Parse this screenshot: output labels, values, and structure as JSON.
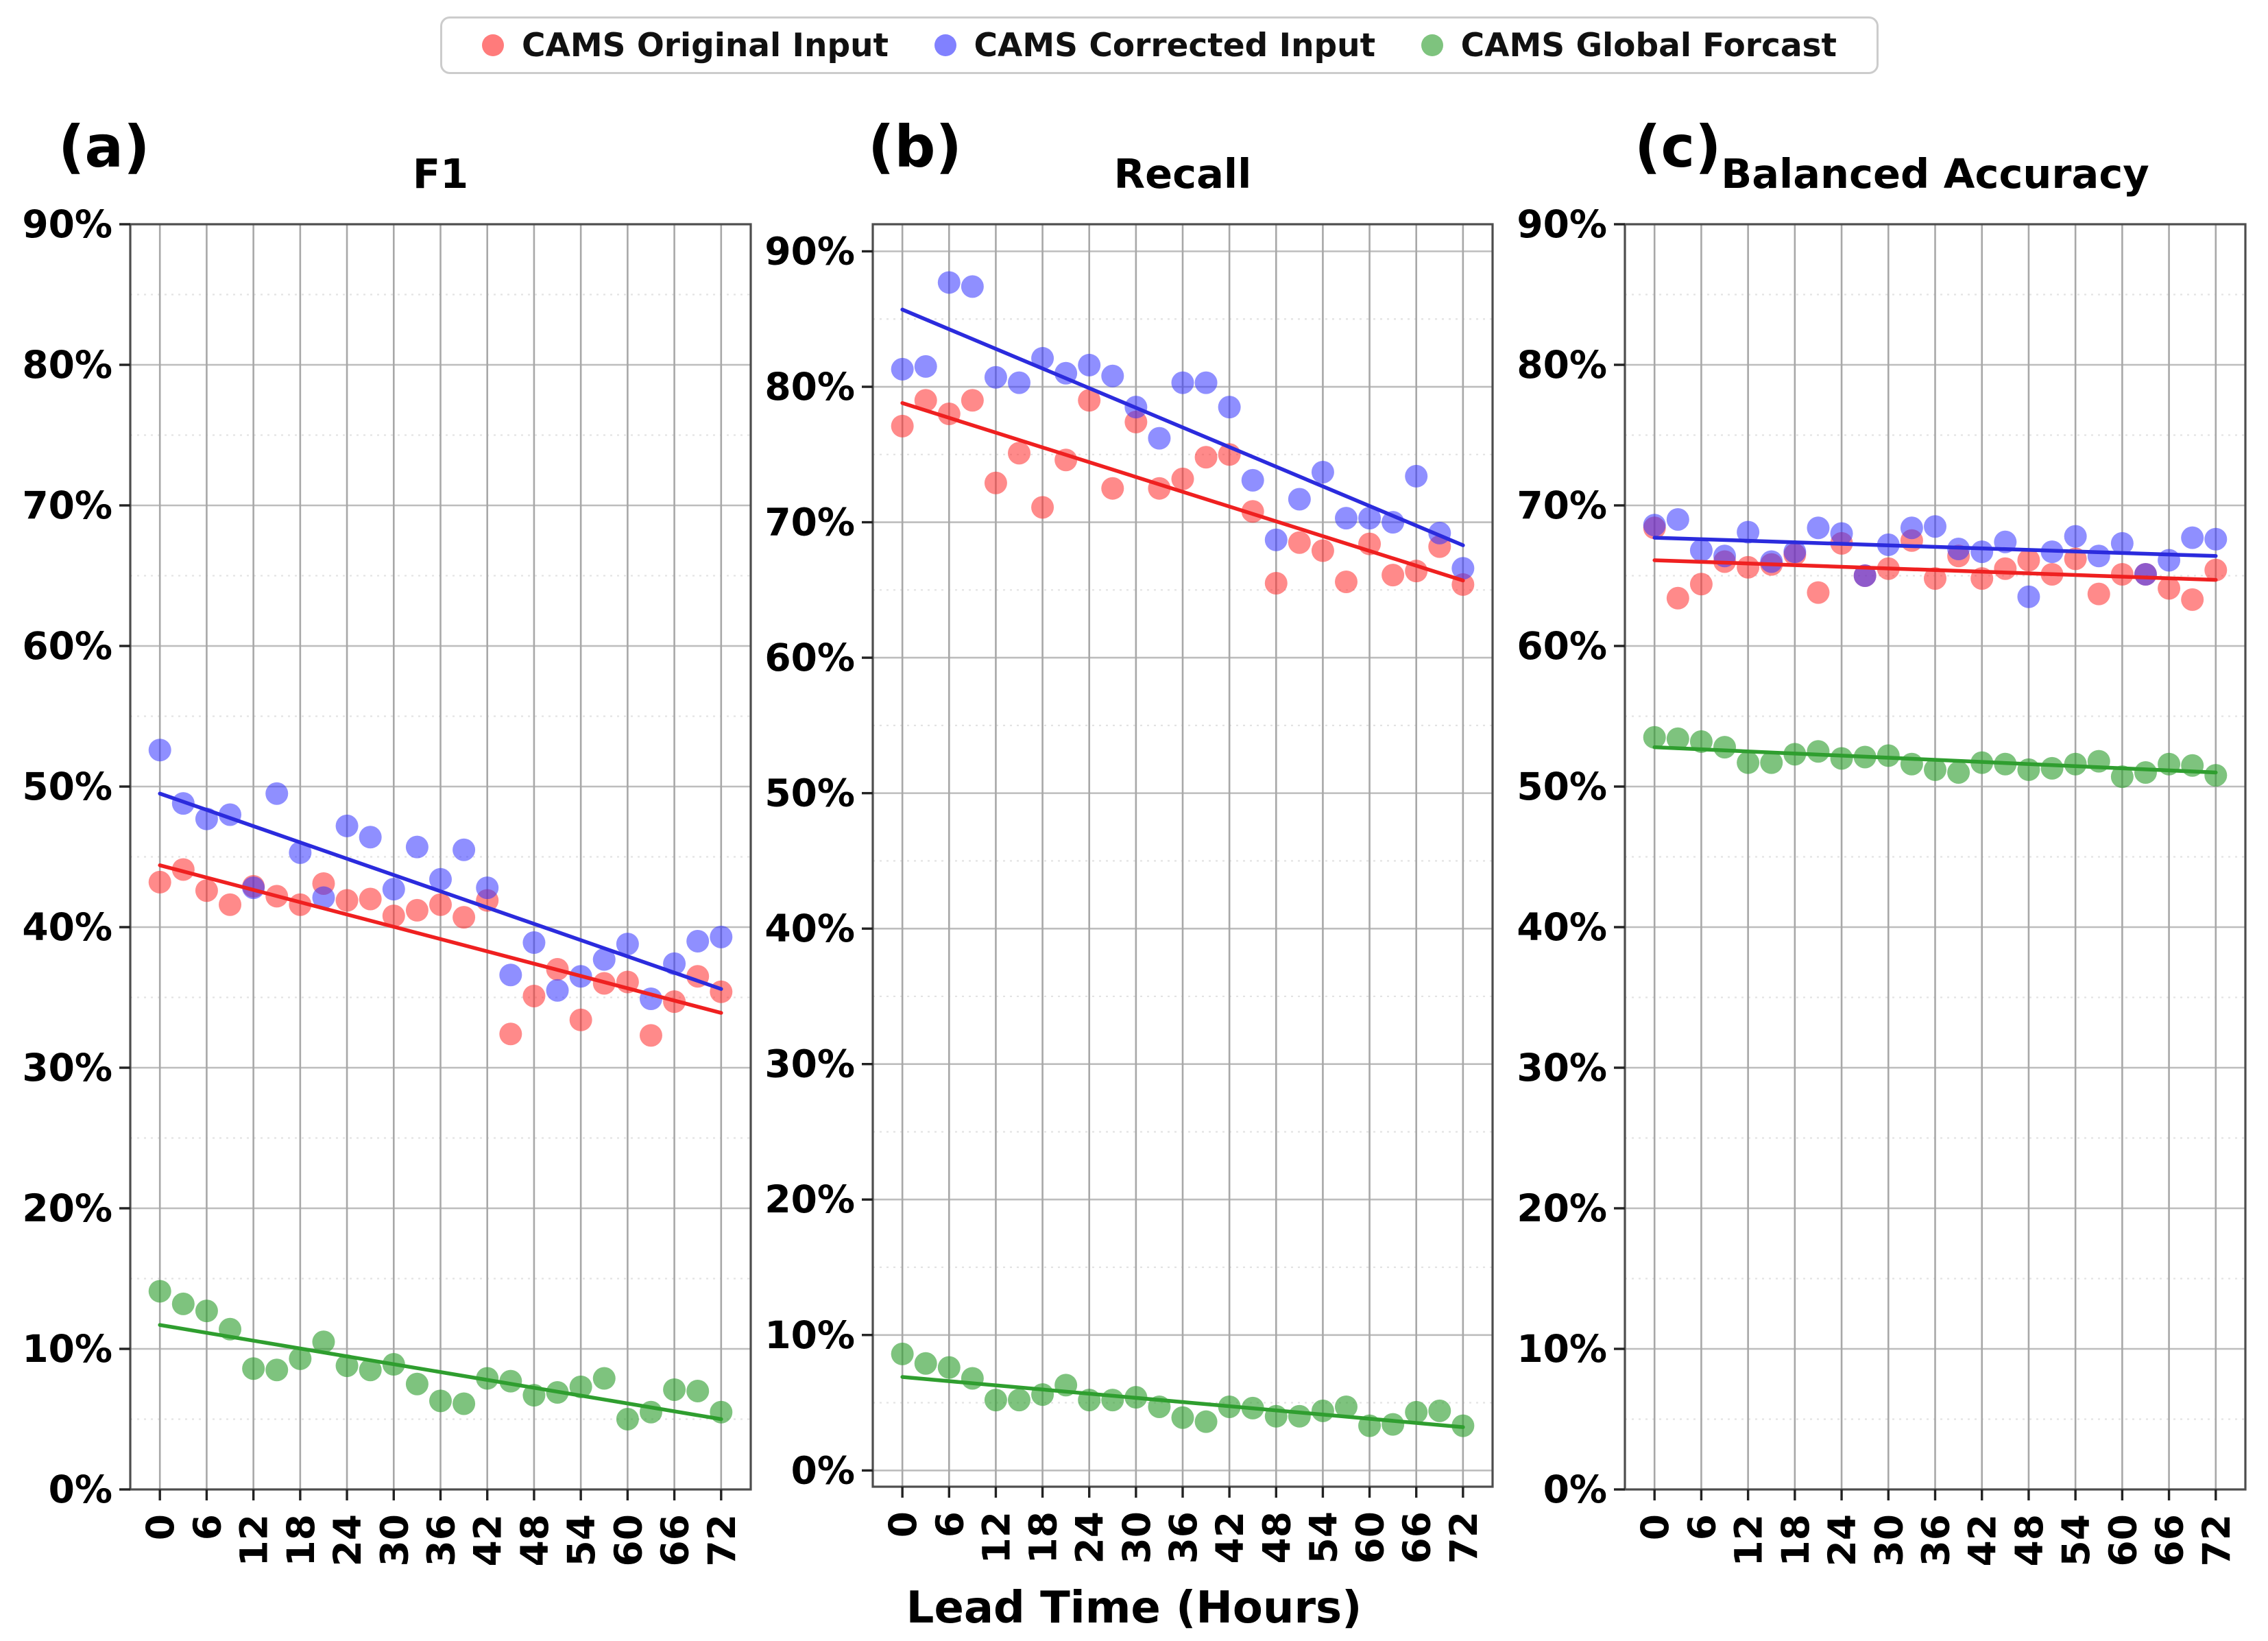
{
  "figure": {
    "xlabel": "Lead Time (Hours)",
    "background": "#ffffff",
    "legend": {
      "items": [
        {
          "label": "CAMS Original Input",
          "color": "#ff2a2a"
        },
        {
          "label": "CAMS Corrected Input",
          "color": "#3333ff"
        },
        {
          "label": "CAMS Global Forcast",
          "color": "#2f9e2f"
        }
      ]
    },
    "panels": [
      {
        "letter": "(a)"
      },
      {
        "letter": "(b)"
      },
      {
        "letter": "(c)"
      }
    ]
  },
  "chart_data": [
    {
      "type": "scatter",
      "title": "F1",
      "xlabel": "Lead Time (Hours)",
      "ylabel": "",
      "xlim": [
        -3.8,
        75.8
      ],
      "ylim": [
        0,
        90
      ],
      "grid": true,
      "legend_position": "top-center-shared",
      "xticks": [
        {
          "v": 0,
          "label": "0"
        },
        {
          "v": 6,
          "label": "6"
        },
        {
          "v": 12,
          "label": "12"
        },
        {
          "v": 18,
          "label": "18"
        },
        {
          "v": 24,
          "label": "24"
        },
        {
          "v": 30,
          "label": "30"
        },
        {
          "v": 36,
          "label": "36"
        },
        {
          "v": 42,
          "label": "42"
        },
        {
          "v": 48,
          "label": "48"
        },
        {
          "v": 54,
          "label": "54"
        },
        {
          "v": 60,
          "label": "60"
        },
        {
          "v": 66,
          "label": "66"
        },
        {
          "v": 72,
          "label": "72"
        }
      ],
      "yticks": [
        {
          "v": 90,
          "label": "90%"
        },
        {
          "v": 80,
          "label": "80%"
        },
        {
          "v": 70,
          "label": "70%"
        },
        {
          "v": 60,
          "label": "60%"
        },
        {
          "v": 50,
          "label": "50%"
        },
        {
          "v": 40,
          "label": "40%"
        },
        {
          "v": 30,
          "label": "30%"
        },
        {
          "v": 20,
          "label": "20%"
        },
        {
          "v": 10,
          "label": "10%"
        },
        {
          "v": 0,
          "label": "0%"
        }
      ],
      "x": [
        0,
        3,
        6,
        9,
        12,
        15,
        18,
        21,
        24,
        27,
        30,
        33,
        36,
        39,
        42,
        45,
        48,
        51,
        54,
        57,
        60,
        63,
        66,
        69,
        72
      ],
      "series": [
        {
          "name": "CAMS Original Input",
          "color": "#ff2a2a",
          "line_color": "#ef2020",
          "opacity": 0.55,
          "values": [
            43.2,
            44.1,
            42.6,
            41.6,
            42.9,
            42.2,
            41.6,
            43.1,
            41.9,
            42.0,
            40.8,
            41.2,
            41.6,
            40.7,
            41.9,
            32.4,
            35.1,
            37.0,
            33.4,
            36.0,
            36.1,
            32.3,
            34.7,
            36.5,
            35.4
          ],
          "trend": {
            "x": [
              0,
              72
            ],
            "y": [
              44.4,
              33.9
            ]
          }
        },
        {
          "name": "CAMS Corrected Input",
          "color": "#3333ff",
          "line_color": "#2b2bdd",
          "opacity": 0.55,
          "values": [
            52.6,
            48.8,
            47.7,
            48.0,
            42.8,
            49.5,
            45.3,
            42.1,
            47.2,
            46.4,
            42.7,
            45.7,
            43.4,
            45.5,
            42.8,
            36.6,
            38.9,
            35.5,
            36.5,
            37.7,
            38.8,
            34.9,
            37.4,
            39.0,
            39.3
          ],
          "trend": {
            "x": [
              0,
              72
            ],
            "y": [
              49.5,
              35.6
            ]
          }
        },
        {
          "name": "CAMS Global Forcast",
          "color": "#2f9e2f",
          "line_color": "#2f9e2f",
          "opacity": 0.62,
          "values": [
            14.1,
            13.2,
            12.7,
            11.4,
            8.6,
            8.5,
            9.3,
            10.5,
            8.8,
            8.5,
            8.9,
            7.5,
            6.3,
            6.1,
            7.9,
            7.7,
            6.7,
            6.9,
            7.3,
            7.9,
            5.0,
            5.5,
            7.1,
            7.0,
            5.5
          ],
          "trend": {
            "x": [
              0,
              72
            ],
            "y": [
              11.7,
              5.0
            ]
          }
        }
      ]
    },
    {
      "type": "scatter",
      "title": "Recall",
      "xlabel": "Lead Time (Hours)",
      "ylabel": "",
      "xlim": [
        -3.8,
        75.8
      ],
      "ylim": [
        -1.2,
        92.0
      ],
      "grid": true,
      "xticks": [
        {
          "v": 0,
          "label": "0"
        },
        {
          "v": 6,
          "label": "6"
        },
        {
          "v": 12,
          "label": "12"
        },
        {
          "v": 18,
          "label": "18"
        },
        {
          "v": 24,
          "label": "24"
        },
        {
          "v": 30,
          "label": "30"
        },
        {
          "v": 36,
          "label": "36"
        },
        {
          "v": 42,
          "label": "42"
        },
        {
          "v": 48,
          "label": "48"
        },
        {
          "v": 54,
          "label": "54"
        },
        {
          "v": 60,
          "label": "60"
        },
        {
          "v": 66,
          "label": "66"
        },
        {
          "v": 72,
          "label": "72"
        }
      ],
      "yticks": [
        {
          "v": 90,
          "label": "90%"
        },
        {
          "v": 80,
          "label": "80%"
        },
        {
          "v": 70,
          "label": "70%"
        },
        {
          "v": 60,
          "label": "60%"
        },
        {
          "v": 50,
          "label": "50%"
        },
        {
          "v": 40,
          "label": "40%"
        },
        {
          "v": 30,
          "label": "30%"
        },
        {
          "v": 20,
          "label": "20%"
        },
        {
          "v": 10,
          "label": "10%"
        },
        {
          "v": 0,
          "label": "0%"
        }
      ],
      "x": [
        0,
        3,
        6,
        9,
        12,
        15,
        18,
        21,
        24,
        27,
        30,
        33,
        36,
        39,
        42,
        45,
        48,
        51,
        54,
        57,
        60,
        63,
        66,
        69,
        72
      ],
      "series": [
        {
          "name": "CAMS Original Input",
          "color": "#ff2a2a",
          "line_color": "#ef2020",
          "opacity": 0.55,
          "values": [
            77.1,
            79.0,
            78.0,
            79.0,
            72.9,
            75.1,
            71.1,
            74.6,
            79.0,
            72.5,
            77.4,
            72.5,
            73.2,
            74.8,
            75.0,
            70.8,
            65.5,
            68.5,
            67.9,
            65.6,
            68.4,
            66.1,
            66.4,
            68.2,
            65.4
          ],
          "trend": {
            "x": [
              0,
              72
            ],
            "y": [
              78.8,
              65.7
            ]
          }
        },
        {
          "name": "CAMS Corrected Input",
          "color": "#3333ff",
          "line_color": "#2b2bdd",
          "opacity": 0.55,
          "values": [
            81.3,
            81.5,
            87.7,
            87.4,
            80.7,
            80.3,
            82.1,
            81.0,
            81.6,
            80.8,
            78.5,
            76.2,
            80.3,
            80.3,
            78.5,
            73.1,
            68.7,
            71.7,
            73.7,
            70.3,
            70.3,
            70.0,
            73.4,
            69.2,
            66.6
          ],
          "trend": {
            "x": [
              0,
              72
            ],
            "y": [
              85.7,
              68.3
            ]
          }
        },
        {
          "name": "CAMS Global Forcast",
          "color": "#2f9e2f",
          "line_color": "#2f9e2f",
          "opacity": 0.62,
          "values": [
            8.6,
            7.9,
            7.6,
            6.8,
            5.2,
            5.2,
            5.6,
            6.3,
            5.2,
            5.2,
            5.4,
            4.7,
            3.9,
            3.6,
            4.7,
            4.6,
            4.0,
            4.0,
            4.4,
            4.7,
            3.3,
            3.4,
            4.3,
            4.4,
            3.3
          ],
          "trend": {
            "x": [
              0,
              72
            ],
            "y": [
              6.9,
              3.2
            ]
          }
        }
      ]
    },
    {
      "type": "scatter",
      "title": "Balanced Accuracy",
      "xlabel": "Lead Time (Hours)",
      "ylabel": "",
      "xlim": [
        -3.8,
        75.8
      ],
      "ylim": [
        0,
        90
      ],
      "grid": true,
      "xticks": [
        {
          "v": 0,
          "label": "0"
        },
        {
          "v": 6,
          "label": "6"
        },
        {
          "v": 12,
          "label": "12"
        },
        {
          "v": 18,
          "label": "18"
        },
        {
          "v": 24,
          "label": "24"
        },
        {
          "v": 30,
          "label": "30"
        },
        {
          "v": 36,
          "label": "36"
        },
        {
          "v": 42,
          "label": "42"
        },
        {
          "v": 48,
          "label": "48"
        },
        {
          "v": 54,
          "label": "54"
        },
        {
          "v": 60,
          "label": "60"
        },
        {
          "v": 66,
          "label": "66"
        },
        {
          "v": 72,
          "label": "72"
        }
      ],
      "yticks": [
        {
          "v": 90,
          "label": "90%"
        },
        {
          "v": 80,
          "label": "80%"
        },
        {
          "v": 70,
          "label": "70%"
        },
        {
          "v": 60,
          "label": "60%"
        },
        {
          "v": 50,
          "label": "50%"
        },
        {
          "v": 40,
          "label": "40%"
        },
        {
          "v": 30,
          "label": "30%"
        },
        {
          "v": 20,
          "label": "20%"
        },
        {
          "v": 10,
          "label": "10%"
        },
        {
          "v": 0,
          "label": "0%"
        }
      ],
      "x": [
        0,
        3,
        6,
        9,
        12,
        15,
        18,
        21,
        24,
        27,
        30,
        33,
        36,
        39,
        42,
        45,
        48,
        51,
        54,
        57,
        60,
        63,
        66,
        69,
        72
      ],
      "series": [
        {
          "name": "CAMS Original Input",
          "color": "#ff2a2a",
          "line_color": "#ef2020",
          "opacity": 0.55,
          "values": [
            68.4,
            63.4,
            64.4,
            66.0,
            65.6,
            65.8,
            66.5,
            63.8,
            67.3,
            65.0,
            65.5,
            67.5,
            64.8,
            66.4,
            64.8,
            65.5,
            66.1,
            65.1,
            66.2,
            63.7,
            65.1,
            65.1,
            64.1,
            63.3,
            65.4
          ],
          "trend": {
            "x": [
              0,
              72
            ],
            "y": [
              66.1,
              64.7
            ]
          }
        },
        {
          "name": "CAMS Corrected Input",
          "color": "#3333ff",
          "line_color": "#2b2bdd",
          "opacity": 0.55,
          "values": [
            68.6,
            69.0,
            66.8,
            66.4,
            68.1,
            66.0,
            66.7,
            68.4,
            68.0,
            65.0,
            67.2,
            68.4,
            68.5,
            66.9,
            66.7,
            67.4,
            63.5,
            66.7,
            67.8,
            66.4,
            67.3,
            65.1,
            66.1,
            67.7,
            67.6
          ],
          "trend": {
            "x": [
              0,
              72
            ],
            "y": [
              67.7,
              66.4
            ]
          }
        },
        {
          "name": "CAMS Global Forcast",
          "color": "#2f9e2f",
          "line_color": "#2f9e2f",
          "opacity": 0.62,
          "values": [
            53.5,
            53.4,
            53.2,
            52.8,
            51.7,
            51.7,
            52.3,
            52.5,
            52.0,
            52.1,
            52.2,
            51.6,
            51.2,
            51.0,
            51.7,
            51.6,
            51.2,
            51.3,
            51.6,
            51.8,
            50.7,
            51.0,
            51.6,
            51.5,
            50.8
          ],
          "trend": {
            "x": [
              0,
              72
            ],
            "y": [
              52.8,
              51.0
            ]
          }
        }
      ]
    }
  ]
}
